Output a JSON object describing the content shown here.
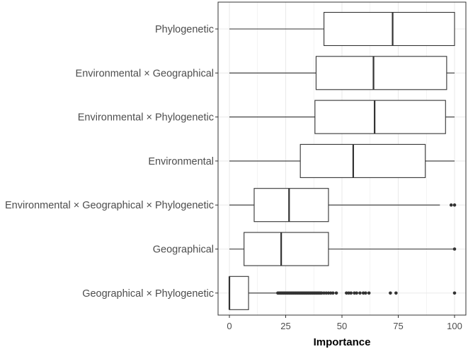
{
  "chart_data": {
    "type": "boxplot",
    "orientation": "horizontal",
    "xlabel": "Importance",
    "xlim": [
      -5,
      105
    ],
    "x_ticks": [
      0,
      25,
      50,
      75,
      100
    ],
    "grid": true,
    "colors": {
      "box_fill": "#ffffff",
      "box_stroke": "#333333",
      "grid": "#ebebeb",
      "outlier": "#333333"
    },
    "categories": [
      {
        "label": "Phylogenetic",
        "whisker_low": 0,
        "q1": 42,
        "median": 72.5,
        "q3": 100,
        "whisker_high": 100,
        "outliers": []
      },
      {
        "label": "Environmental × Geographical",
        "whisker_low": 0,
        "q1": 38.5,
        "median": 64,
        "q3": 96.5,
        "whisker_high": 100,
        "outliers": []
      },
      {
        "label": "Environmental × Phylogenetic",
        "whisker_low": 0,
        "q1": 38,
        "median": 64.5,
        "q3": 96,
        "whisker_high": 100,
        "outliers": []
      },
      {
        "label": "Environmental",
        "whisker_low": 0,
        "q1": 31.5,
        "median": 55,
        "q3": 87,
        "whisker_high": 100,
        "outliers": []
      },
      {
        "label": "Environmental × Geographical × Phylogenetic",
        "whisker_low": 0,
        "q1": 11,
        "median": 26.5,
        "q3": 44,
        "whisker_high": 93.5,
        "outliers": [
          98.5,
          100
        ]
      },
      {
        "label": "Geographical",
        "whisker_low": 0,
        "q1": 6.5,
        "median": 23,
        "q3": 44,
        "whisker_high": 100,
        "outliers": [
          100
        ]
      },
      {
        "label": "Geographical × Phylogenetic",
        "whisker_low": 0,
        "q1": 0,
        "median": 0,
        "q3": 8.5,
        "whisker_high": 21,
        "outliers": [
          21.5,
          22,
          22.5,
          23,
          23.5,
          24,
          24.5,
          25,
          25.5,
          26,
          26.5,
          27,
          27.5,
          28,
          28.5,
          29,
          29.5,
          30,
          30.5,
          31,
          31.5,
          32,
          32.5,
          33,
          33.5,
          34,
          34.5,
          35,
          35.5,
          36,
          36.5,
          37,
          37.5,
          38,
          38.5,
          39,
          39.5,
          40,
          40.5,
          41,
          42,
          43,
          44,
          45,
          46,
          47.5,
          52,
          53,
          54,
          55.5,
          56.5,
          58,
          59.5,
          60.5,
          62,
          71.5,
          74,
          100
        ]
      }
    ]
  }
}
